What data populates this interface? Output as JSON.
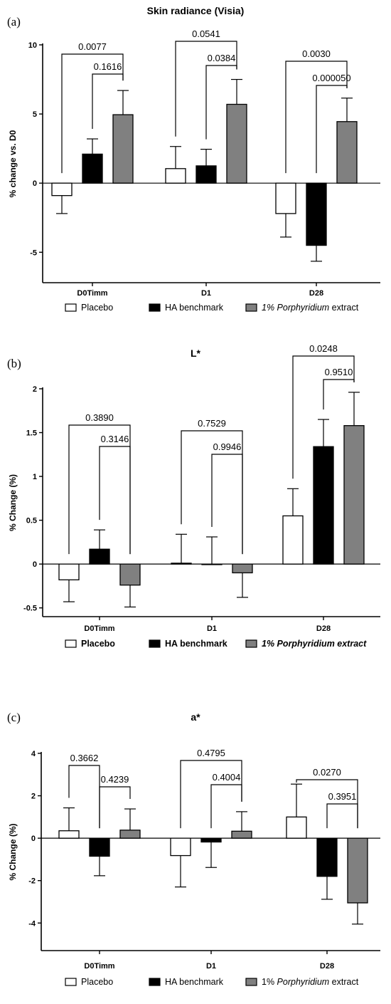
{
  "legend": {
    "placebo": "Placebo",
    "ha": "HA benchmark",
    "porph_pct": "1%",
    "porph_name": "Porphyridium",
    "porph_suffix": "extract"
  },
  "colors": {
    "placebo": "#ffffff",
    "ha": "#000000",
    "porphyridium": "#808080"
  },
  "chart_data": [
    {
      "panel_label": "(a)",
      "title": "Skin radiance (Visia)",
      "type": "bar",
      "ylabel": "% change vs. D0",
      "ylim": [
        -7.2,
        10
      ],
      "yticks": [
        -5,
        0,
        5,
        10
      ],
      "categories": [
        "D0Timm",
        "D1",
        "D28"
      ],
      "series": [
        {
          "name": "Placebo",
          "values": [
            -0.9,
            1.05,
            -2.2
          ],
          "errors": [
            1.3,
            1.6,
            1.7
          ]
        },
        {
          "name": "HA benchmark",
          "values": [
            2.1,
            1.25,
            -4.5
          ],
          "errors": [
            1.1,
            1.2,
            1.15
          ]
        },
        {
          "name": "1% Porphyridium extract",
          "values": [
            4.95,
            5.7,
            4.45
          ],
          "errors": [
            1.75,
            1.8,
            1.7
          ]
        }
      ],
      "comparisons": [
        {
          "cat": 0,
          "from": 0,
          "to": 2,
          "label": "0.0077"
        },
        {
          "cat": 0,
          "from": 1,
          "to": 2,
          "label": "0.1616"
        },
        {
          "cat": 1,
          "from": 0,
          "to": 2,
          "label": "0.0541"
        },
        {
          "cat": 1,
          "from": 1,
          "to": 2,
          "label": "0.0384"
        },
        {
          "cat": 2,
          "from": 0,
          "to": 2,
          "label": "0.0030"
        },
        {
          "cat": 2,
          "from": 1,
          "to": 2,
          "label": "0.000050"
        }
      ]
    },
    {
      "panel_label": "(b)",
      "title": "L*",
      "type": "bar",
      "ylabel": "% Change (%)",
      "ylim": [
        -0.6,
        2.0
      ],
      "yticks": [
        -0.5,
        0.0,
        0.5,
        1.0,
        1.5,
        2.0
      ],
      "categories": [
        "D0Timm",
        "D1",
        "D28"
      ],
      "series": [
        {
          "name": "Placebo",
          "values": [
            -0.18,
            0.01,
            0.55
          ],
          "errors": [
            0.25,
            0.33,
            0.31
          ]
        },
        {
          "name": "HA benchmark",
          "values": [
            0.17,
            0.0,
            1.34
          ],
          "errors": [
            0.22,
            0.31,
            0.31
          ]
        },
        {
          "name": "1% Porphyridium extract",
          "values": [
            -0.24,
            -0.1,
            1.58
          ],
          "errors": [
            0.25,
            0.28,
            0.38
          ]
        }
      ],
      "comparisons": [
        {
          "cat": 0,
          "from": 0,
          "to": 2,
          "label": "0.3890"
        },
        {
          "cat": 0,
          "from": 1,
          "to": 2,
          "label": "0.3146"
        },
        {
          "cat": 1,
          "from": 0,
          "to": 2,
          "label": "0.7529"
        },
        {
          "cat": 1,
          "from": 1,
          "to": 2,
          "label": "0.9946"
        },
        {
          "cat": 2,
          "from": 0,
          "to": 2,
          "label": "0.0248"
        },
        {
          "cat": 2,
          "from": 1,
          "to": 2,
          "label": "0.9510"
        }
      ]
    },
    {
      "panel_label": "(c)",
      "title": "a*",
      "type": "bar",
      "ylabel": "% Change (%)",
      "ylim": [
        -5.3,
        4
      ],
      "yticks": [
        -4,
        -2,
        0,
        2,
        4
      ],
      "categories": [
        "D0Timm",
        "D1",
        "D28"
      ],
      "series": [
        {
          "name": "Placebo",
          "values": [
            0.35,
            -0.82,
            1.0
          ],
          "errors": [
            1.08,
            1.48,
            1.55
          ]
        },
        {
          "name": "HA benchmark",
          "values": [
            -0.85,
            -0.18,
            -1.8
          ],
          "errors": [
            0.92,
            1.2,
            1.08
          ]
        },
        {
          "name": "1% Porphyridium extract",
          "values": [
            0.38,
            0.33,
            -3.05
          ],
          "errors": [
            1.0,
            0.92,
            1.0
          ]
        }
      ],
      "comparisons": [
        {
          "cat": 0,
          "from": 0,
          "to": 1,
          "label": "0.3662"
        },
        {
          "cat": 0,
          "from": 1,
          "to": 2,
          "label": "0.4239"
        },
        {
          "cat": 1,
          "from": 0,
          "to": 2,
          "label": "0.4795"
        },
        {
          "cat": 1,
          "from": 1,
          "to": 2,
          "label": "0.4004"
        },
        {
          "cat": 2,
          "from": 0,
          "to": 2,
          "label": "0.0270"
        },
        {
          "cat": 2,
          "from": 1,
          "to": 2,
          "label": "0.3951"
        }
      ]
    }
  ]
}
